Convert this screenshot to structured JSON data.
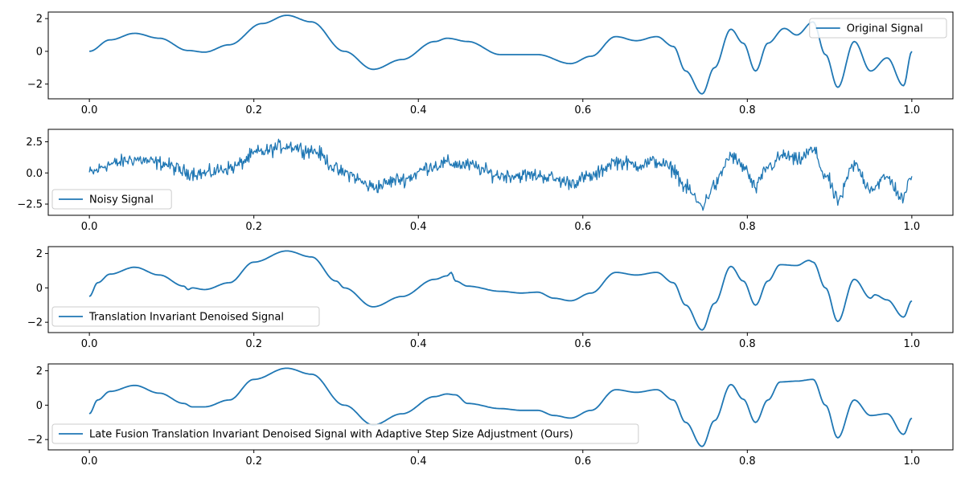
{
  "chart_data": [
    {
      "type": "line",
      "kind": "smooth",
      "title": "",
      "xlabel": "",
      "ylabel": "",
      "xlim": [
        -0.05,
        1.05
      ],
      "ylim": [
        -2.9,
        2.4
      ],
      "xticks": [
        0.0,
        0.2,
        0.4,
        0.6,
        0.8,
        1.0
      ],
      "xtick_labels": [
        "0.0",
        "0.2",
        "0.4",
        "0.6",
        "0.8",
        "1.0"
      ],
      "yticks": [
        -2,
        0,
        2
      ],
      "ytick_labels": [
        "−2",
        "0",
        "2"
      ],
      "legend": "top-right",
      "series": [
        {
          "name": "Original Signal",
          "color": "#1f77b4",
          "x": [
            0.0,
            0.025,
            0.055,
            0.085,
            0.12,
            0.14,
            0.17,
            0.21,
            0.24,
            0.27,
            0.31,
            0.345,
            0.38,
            0.42,
            0.435,
            0.46,
            0.5,
            0.525,
            0.545,
            0.585,
            0.61,
            0.64,
            0.665,
            0.69,
            0.71,
            0.725,
            0.745,
            0.76,
            0.78,
            0.795,
            0.81,
            0.825,
            0.845,
            0.86,
            0.88,
            0.895,
            0.91,
            0.93,
            0.95,
            0.97,
            0.99,
            1.0
          ],
          "y": [
            0.0,
            0.7,
            1.1,
            0.8,
            0.05,
            -0.05,
            0.4,
            1.7,
            2.2,
            1.8,
            0.0,
            -1.1,
            -0.5,
            0.6,
            0.8,
            0.6,
            -0.2,
            -0.2,
            -0.2,
            -0.75,
            -0.3,
            0.9,
            0.65,
            0.9,
            0.3,
            -1.2,
            -2.6,
            -1.0,
            1.35,
            0.5,
            -1.2,
            0.5,
            1.4,
            1.0,
            1.8,
            -0.2,
            -2.2,
            0.6,
            -1.2,
            -0.4,
            -2.1,
            0.0
          ]
        }
      ]
    },
    {
      "type": "line",
      "kind": "noisy",
      "title": "",
      "xlabel": "",
      "ylabel": "",
      "xlim": [
        -0.05,
        1.05
      ],
      "ylim": [
        -3.4,
        3.5
      ],
      "xticks": [
        0.0,
        0.2,
        0.4,
        0.6,
        0.8,
        1.0
      ],
      "xtick_labels": [
        "0.0",
        "0.2",
        "0.4",
        "0.6",
        "0.8",
        "1.0"
      ],
      "yticks": [
        -2.5,
        0.0,
        2.5
      ],
      "ytick_labels": [
        "−2.5",
        "0.0",
        "2.5"
      ],
      "legend": "bottom-left",
      "noise_amplitude": 0.4,
      "series": [
        {
          "name": "Noisy Signal",
          "color": "#1f77b4",
          "x": [
            0.0,
            0.025,
            0.055,
            0.085,
            0.12,
            0.14,
            0.17,
            0.21,
            0.24,
            0.27,
            0.31,
            0.345,
            0.38,
            0.42,
            0.435,
            0.46,
            0.5,
            0.525,
            0.545,
            0.585,
            0.61,
            0.64,
            0.665,
            0.69,
            0.71,
            0.725,
            0.745,
            0.76,
            0.78,
            0.795,
            0.81,
            0.825,
            0.845,
            0.86,
            0.88,
            0.895,
            0.91,
            0.93,
            0.95,
            0.97,
            0.99,
            1.0
          ],
          "y": [
            0.0,
            0.7,
            1.1,
            0.8,
            0.05,
            -0.05,
            0.4,
            1.7,
            2.2,
            1.8,
            0.0,
            -1.1,
            -0.5,
            0.6,
            0.8,
            0.6,
            -0.2,
            -0.2,
            -0.2,
            -0.75,
            -0.3,
            0.9,
            0.65,
            0.9,
            0.3,
            -1.2,
            -2.6,
            -1.0,
            1.35,
            0.5,
            -1.2,
            0.5,
            1.4,
            1.0,
            1.8,
            -0.2,
            -2.2,
            0.6,
            -1.2,
            -0.4,
            -2.1,
            0.0
          ]
        }
      ]
    },
    {
      "type": "line",
      "kind": "smooth",
      "title": "",
      "xlabel": "",
      "ylabel": "",
      "xlim": [
        -0.05,
        1.05
      ],
      "ylim": [
        -2.6,
        2.4
      ],
      "xticks": [
        0.0,
        0.2,
        0.4,
        0.6,
        0.8,
        1.0
      ],
      "xtick_labels": [
        "0.0",
        "0.2",
        "0.4",
        "0.6",
        "0.8",
        "1.0"
      ],
      "yticks": [
        -2,
        0,
        2
      ],
      "ytick_labels": [
        "−2",
        "0",
        "2"
      ],
      "legend": "bottom-left",
      "series": [
        {
          "name": "Translation Invariant Denoised Signal",
          "color": "#1f77b4",
          "x": [
            0.0,
            0.01,
            0.025,
            0.055,
            0.085,
            0.115,
            0.12,
            0.125,
            0.14,
            0.17,
            0.2,
            0.24,
            0.27,
            0.3,
            0.31,
            0.345,
            0.38,
            0.42,
            0.435,
            0.44,
            0.445,
            0.46,
            0.5,
            0.525,
            0.545,
            0.565,
            0.585,
            0.61,
            0.64,
            0.665,
            0.69,
            0.71,
            0.725,
            0.745,
            0.76,
            0.78,
            0.795,
            0.81,
            0.825,
            0.84,
            0.86,
            0.875,
            0.88,
            0.895,
            0.91,
            0.93,
            0.95,
            0.955,
            0.97,
            0.99,
            1.0
          ],
          "y": [
            -0.5,
            0.3,
            0.8,
            1.2,
            0.75,
            0.1,
            -0.1,
            0.0,
            -0.1,
            0.3,
            1.5,
            2.15,
            1.8,
            0.4,
            0.0,
            -1.1,
            -0.5,
            0.5,
            0.7,
            0.9,
            0.4,
            0.1,
            -0.2,
            -0.3,
            -0.25,
            -0.6,
            -0.75,
            -0.3,
            0.9,
            0.75,
            0.9,
            0.3,
            -1.0,
            -2.45,
            -0.9,
            1.25,
            0.4,
            -1.0,
            0.4,
            1.35,
            1.3,
            1.6,
            1.5,
            0.0,
            -1.95,
            0.5,
            -0.6,
            -0.4,
            -0.7,
            -1.7,
            -0.75
          ]
        }
      ]
    },
    {
      "type": "line",
      "kind": "smooth",
      "title": "",
      "xlabel": "",
      "ylabel": "",
      "xlim": [
        -0.05,
        1.05
      ],
      "ylim": [
        -2.6,
        2.4
      ],
      "xticks": [
        0.0,
        0.2,
        0.4,
        0.6,
        0.8,
        1.0
      ],
      "xtick_labels": [
        "0.0",
        "0.2",
        "0.4",
        "0.6",
        "0.8",
        "1.0"
      ],
      "yticks": [
        -2,
        0,
        2
      ],
      "ytick_labels": [
        "−2",
        "0",
        "2"
      ],
      "legend": "bottom-left",
      "series": [
        {
          "name": "Late Fusion Translation Invariant Denoised Signal with Adaptive Step Size Adjustment (Ours)",
          "color": "#1f77b4",
          "x": [
            0.0,
            0.01,
            0.025,
            0.055,
            0.085,
            0.115,
            0.125,
            0.14,
            0.17,
            0.2,
            0.24,
            0.27,
            0.31,
            0.345,
            0.38,
            0.42,
            0.435,
            0.445,
            0.46,
            0.5,
            0.525,
            0.545,
            0.565,
            0.585,
            0.61,
            0.64,
            0.665,
            0.69,
            0.71,
            0.725,
            0.745,
            0.76,
            0.78,
            0.795,
            0.81,
            0.825,
            0.84,
            0.86,
            0.88,
            0.895,
            0.91,
            0.93,
            0.95,
            0.97,
            0.99,
            1.0
          ],
          "y": [
            -0.5,
            0.3,
            0.8,
            1.15,
            0.7,
            0.1,
            -0.1,
            -0.1,
            0.3,
            1.5,
            2.15,
            1.8,
            0.0,
            -1.15,
            -0.5,
            0.5,
            0.65,
            0.6,
            0.1,
            -0.2,
            -0.3,
            -0.3,
            -0.6,
            -0.75,
            -0.3,
            0.9,
            0.75,
            0.9,
            0.3,
            -1.0,
            -2.4,
            -0.9,
            1.2,
            0.35,
            -1.0,
            0.3,
            1.35,
            1.4,
            1.5,
            0.0,
            -1.9,
            0.3,
            -0.6,
            -0.5,
            -1.7,
            -0.75
          ]
        }
      ]
    }
  ]
}
